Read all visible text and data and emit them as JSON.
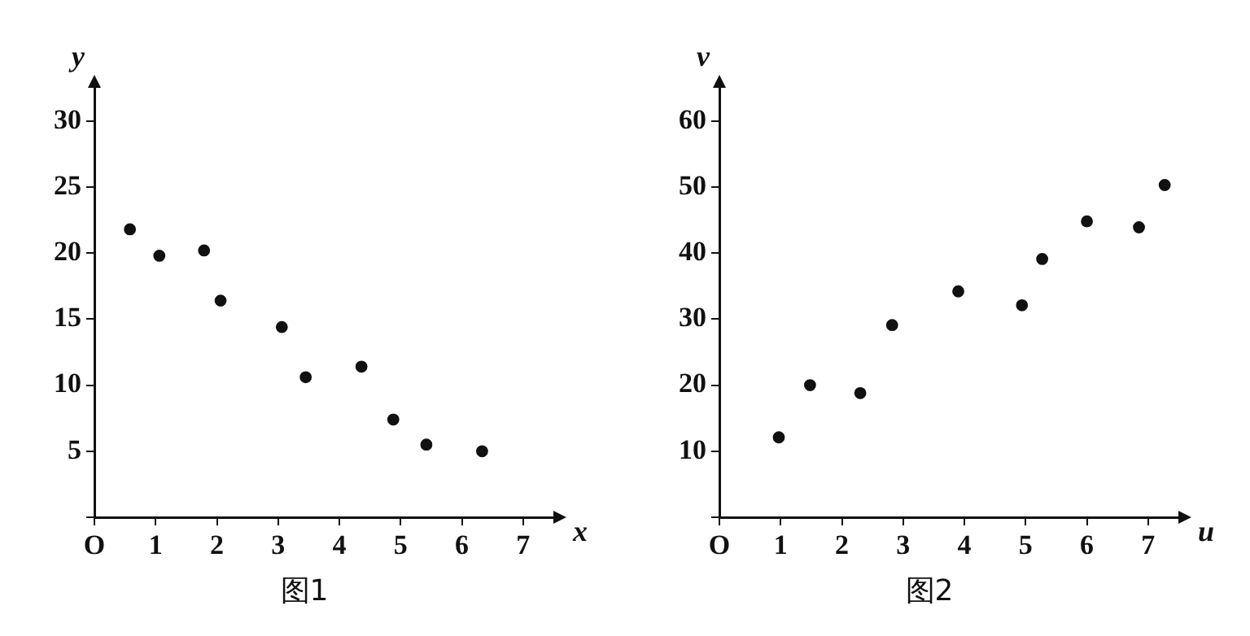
{
  "chart_data": [
    {
      "type": "scatter",
      "title": "图1",
      "xlabel": "x",
      "ylabel": "y",
      "marker": "circle",
      "color": "#111111",
      "x": [
        0.58,
        1.06,
        1.79,
        2.06,
        3.06,
        3.45,
        4.36,
        4.88,
        5.42,
        6.33
      ],
      "values": [
        21.8,
        19.8,
        20.2,
        16.4,
        14.4,
        10.6,
        11.4,
        7.4,
        5.5,
        5.0
      ],
      "xlim": [
        0,
        7.6
      ],
      "xticks": [
        {
          "value": 0,
          "label": "O"
        },
        1,
        2,
        3,
        4,
        5,
        6,
        7
      ],
      "ylim": [
        0,
        33
      ],
      "yticks": [
        {
          "value": 0,
          "label": null
        },
        5,
        10,
        15,
        20,
        25,
        30
      ]
    },
    {
      "type": "scatter",
      "title": "图2",
      "xlabel": "u",
      "ylabel": "v",
      "marker": "circle",
      "color": "#111111",
      "x": [
        0.97,
        1.48,
        2.3,
        2.82,
        3.9,
        4.94,
        5.27,
        6.0,
        6.85,
        7.27
      ],
      "values": [
        12.1,
        20.0,
        18.8,
        29.1,
        34.2,
        32.1,
        39.1,
        44.8,
        43.9,
        50.3
      ],
      "xlim": [
        0,
        7.6
      ],
      "xticks": [
        {
          "value": 0,
          "label": "O"
        },
        1,
        2,
        3,
        4,
        5,
        6,
        7
      ],
      "ylim": [
        0,
        66
      ],
      "yticks": [
        {
          "value": 0,
          "label": null
        },
        10,
        20,
        30,
        40,
        50,
        60
      ]
    }
  ]
}
